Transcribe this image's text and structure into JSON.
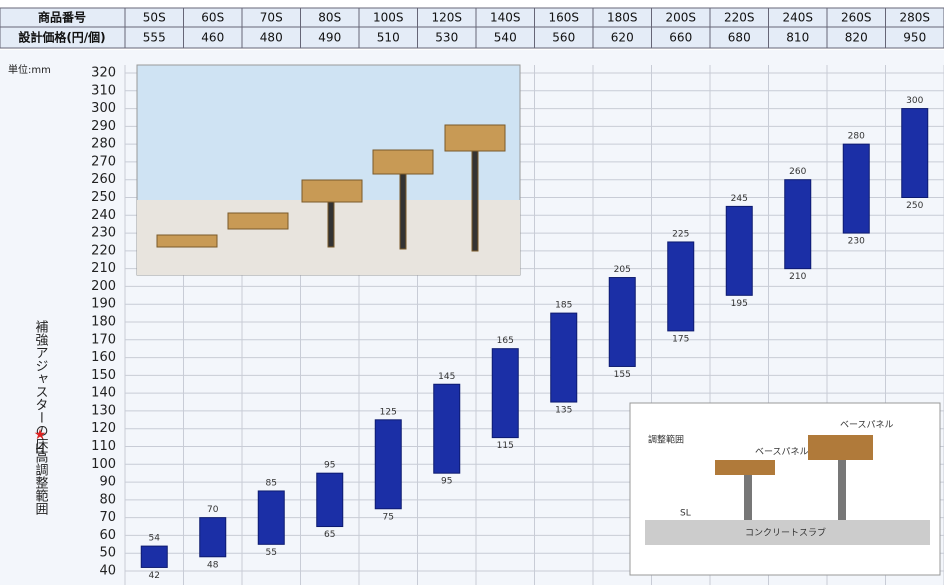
{
  "table": {
    "row_labels": [
      "商品番号",
      "設計価格(円/個)"
    ],
    "prices": [
      555,
      460,
      480,
      490,
      510,
      530,
      540,
      560,
      620,
      660,
      680,
      810,
      820,
      950
    ]
  },
  "chart_data": {
    "type": "floating-bar",
    "categories": [
      "50S",
      "60S",
      "70S",
      "80S",
      "100S",
      "120S",
      "140S",
      "160S",
      "180S",
      "200S",
      "220S",
      "240S",
      "260S",
      "280S"
    ],
    "low": [
      42,
      48,
      55,
      65,
      75,
      95,
      115,
      135,
      155,
      175,
      195,
      210,
      230,
      250
    ],
    "high": [
      54,
      70,
      85,
      95,
      125,
      145,
      165,
      185,
      205,
      225,
      245,
      260,
      280,
      300
    ],
    "color": "#1b2fa6",
    "unit": "単位:mm",
    "y_label": "補強アジャスターの床高調整範囲",
    "y_symbol": "H",
    "ylim": [
      40,
      320
    ],
    "yticks": [
      40,
      50,
      60,
      70,
      80,
      90,
      100,
      110,
      120,
      130,
      140,
      150,
      160,
      170,
      180,
      190,
      200,
      210,
      220,
      230,
      240,
      250,
      260,
      270,
      280,
      290,
      300,
      310,
      320
    ],
    "grid": true,
    "diagram": {
      "labels": [
        "ベースパネル",
        "ベースパネル",
        "コンクリートスラブ",
        "SL",
        "調整範囲"
      ]
    }
  }
}
